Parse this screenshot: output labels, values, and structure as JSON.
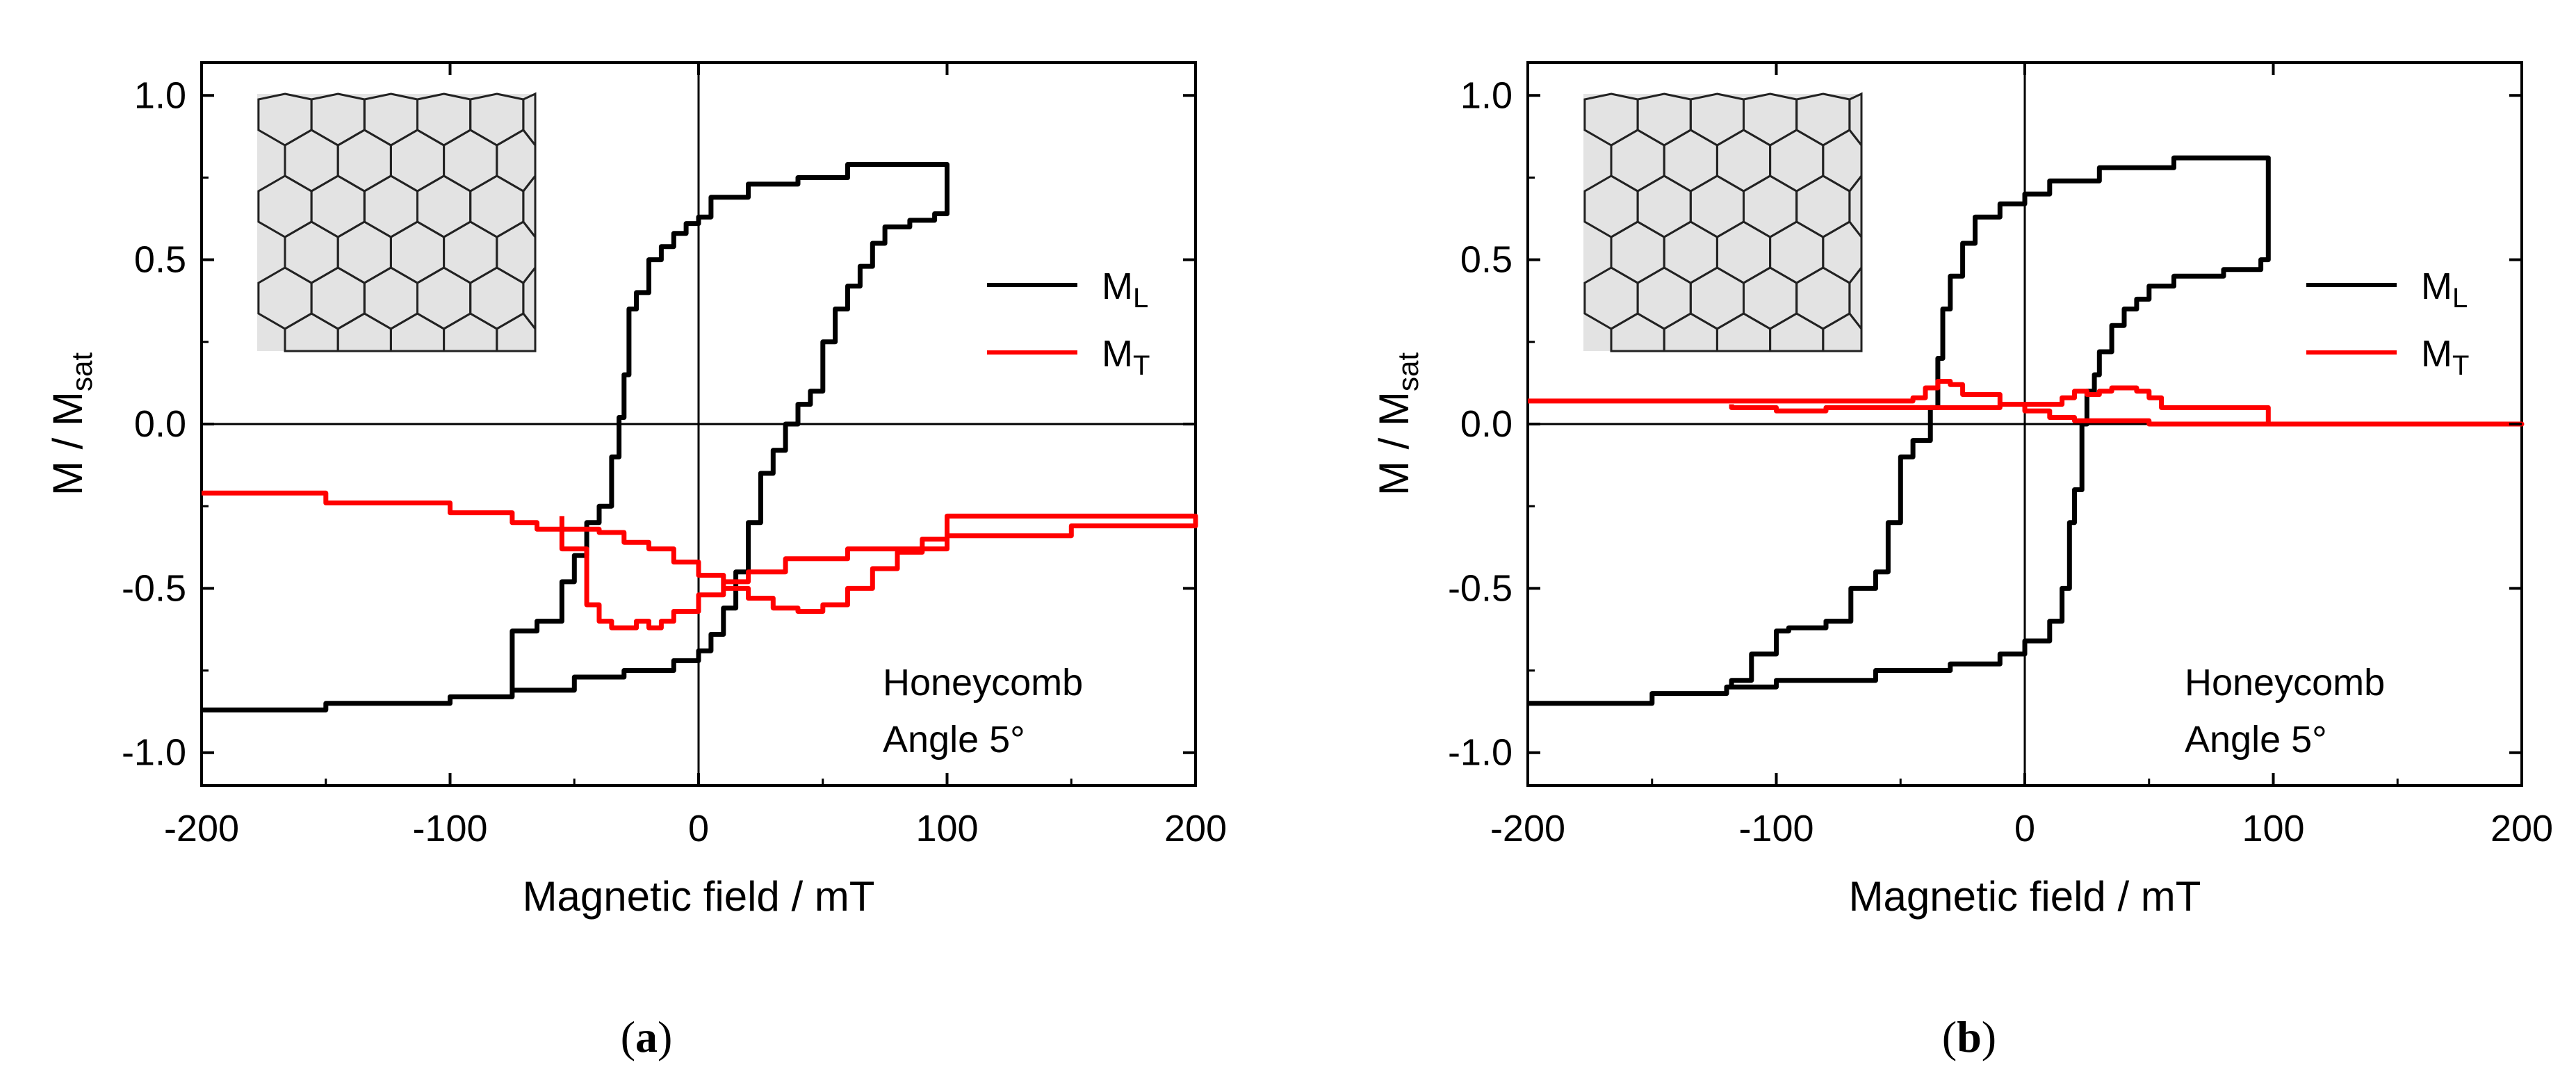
{
  "chart_data": [
    {
      "type": "line",
      "caption_letter": "a",
      "xlabel": "Magnetic field / mT",
      "ylabel_main": "M / M",
      "ylabel_sub": "sat",
      "xlim": [
        -200,
        200
      ],
      "ylim": [
        -1.1,
        1.1
      ],
      "xticks": [
        -200,
        -100,
        0,
        100,
        200
      ],
      "yticks": [
        -1.0,
        -0.5,
        0.0,
        0.5,
        1.0
      ],
      "xtick_labels": [
        "-200",
        "-100",
        "0",
        "100",
        "200"
      ],
      "ytick_labels": [
        "-1.0",
        "-0.5",
        "0.0",
        "0.5",
        "1.0"
      ],
      "annotation_line1": "Honeycomb",
      "annotation_line2": "Angle 5°",
      "legend": [
        {
          "main": "M",
          "sub": "L",
          "color": "#000000"
        },
        {
          "main": "M",
          "sub": "T",
          "color": "#ff0000"
        }
      ],
      "series": [
        {
          "name": "ML",
          "color": "#000000",
          "points": [
            [
              -200,
              -0.87
            ],
            [
              -150,
              -0.85
            ],
            [
              -100,
              -0.83
            ],
            [
              -75,
              -0.81
            ],
            [
              -50,
              -0.77
            ],
            [
              -30,
              -0.75
            ],
            [
              -10,
              -0.72
            ],
            [
              0,
              -0.69
            ],
            [
              5,
              -0.64
            ],
            [
              10,
              -0.56
            ],
            [
              15,
              -0.45
            ],
            [
              20,
              -0.3
            ],
            [
              25,
              -0.15
            ],
            [
              30,
              -0.08
            ],
            [
              35,
              0.0
            ],
            [
              40,
              0.06
            ],
            [
              45,
              0.1
            ],
            [
              50,
              0.25
            ],
            [
              55,
              0.35
            ],
            [
              60,
              0.42
            ],
            [
              65,
              0.48
            ],
            [
              70,
              0.55
            ],
            [
              75,
              0.6
            ],
            [
              85,
              0.62
            ],
            [
              95,
              0.64
            ],
            [
              100,
              0.79
            ],
            [
              100,
              0.79
            ],
            [
              60,
              0.75
            ],
            [
              40,
              0.73
            ],
            [
              20,
              0.69
            ],
            [
              5,
              0.63
            ],
            [
              0,
              0.61
            ],
            [
              -5,
              0.58
            ],
            [
              -10,
              0.54
            ],
            [
              -15,
              0.5
            ],
            [
              -20,
              0.4
            ],
            [
              -25,
              0.35
            ],
            [
              -28,
              0.15
            ],
            [
              -30,
              0.02
            ],
            [
              -32,
              -0.1
            ],
            [
              -35,
              -0.25
            ],
            [
              -40,
              -0.3
            ],
            [
              -45,
              -0.4
            ],
            [
              -50,
              -0.48
            ],
            [
              -55,
              -0.6
            ],
            [
              -65,
              -0.63
            ],
            [
              -75,
              -0.65
            ],
            [
              -75,
              -0.81
            ]
          ]
        },
        {
          "name": "MT",
          "color": "#ff0000",
          "points": [
            [
              -200,
              -0.21
            ],
            [
              -150,
              -0.24
            ],
            [
              -100,
              -0.27
            ],
            [
              -75,
              -0.3
            ],
            [
              -65,
              -0.32
            ],
            [
              -55,
              -0.38
            ],
            [
              -45,
              -0.55
            ],
            [
              -40,
              -0.6
            ],
            [
              -35,
              -0.62
            ],
            [
              -30,
              -0.62
            ],
            [
              -25,
              -0.6
            ],
            [
              -20,
              -0.62
            ],
            [
              -15,
              -0.6
            ],
            [
              -10,
              -0.57
            ],
            [
              0,
              -0.52
            ],
            [
              10,
              -0.48
            ],
            [
              20,
              -0.45
            ],
            [
              35,
              -0.41
            ],
            [
              60,
              -0.38
            ],
            [
              100,
              -0.34
            ],
            [
              150,
              -0.31
            ],
            [
              200,
              -0.28
            ],
            [
              200,
              -0.28
            ],
            [
              100,
              -0.35
            ],
            [
              90,
              -0.39
            ],
            [
              80,
              -0.44
            ],
            [
              70,
              -0.5
            ],
            [
              60,
              -0.55
            ],
            [
              50,
              -0.57
            ],
            [
              40,
              -0.56
            ],
            [
              30,
              -0.53
            ],
            [
              20,
              -0.5
            ],
            [
              10,
              -0.46
            ],
            [
              0,
              -0.42
            ],
            [
              -10,
              -0.38
            ],
            [
              -20,
              -0.36
            ],
            [
              -30,
              -0.33
            ],
            [
              -40,
              -0.32
            ],
            [
              -55,
              -0.28
            ]
          ]
        }
      ]
    },
    {
      "type": "line",
      "caption_letter": "b",
      "xlabel": "Magnetic field / mT",
      "ylabel_main": "M / M",
      "ylabel_sub": "sat",
      "xlim": [
        -200,
        200
      ],
      "ylim": [
        -1.1,
        1.1
      ],
      "xticks": [
        -200,
        -100,
        0,
        100,
        200
      ],
      "yticks": [
        -1.0,
        -0.5,
        0.0,
        0.5,
        1.0
      ],
      "xtick_labels": [
        "-200",
        "-100",
        "0",
        "100",
        "200"
      ],
      "ytick_labels": [
        "-1.0",
        "-0.5",
        "0.0",
        "0.5",
        "1.0"
      ],
      "annotation_line1": "Honeycomb",
      "annotation_line2": "Angle 5°",
      "legend": [
        {
          "main": "M",
          "sub": "L",
          "color": "#000000"
        },
        {
          "main": "M",
          "sub": "T",
          "color": "#ff0000"
        }
      ],
      "series": [
        {
          "name": "ML",
          "color": "#000000",
          "points": [
            [
              -200,
              -0.85
            ],
            [
              -150,
              -0.82
            ],
            [
              -120,
              -0.8
            ],
            [
              -100,
              -0.78
            ],
            [
              -60,
              -0.75
            ],
            [
              -30,
              -0.73
            ],
            [
              -10,
              -0.7
            ],
            [
              0,
              -0.66
            ],
            [
              10,
              -0.6
            ],
            [
              15,
              -0.5
            ],
            [
              18,
              -0.3
            ],
            [
              20,
              -0.2
            ],
            [
              23,
              0.0
            ],
            [
              25,
              0.1
            ],
            [
              28,
              0.15
            ],
            [
              30,
              0.22
            ],
            [
              35,
              0.3
            ],
            [
              40,
              0.35
            ],
            [
              45,
              0.38
            ],
            [
              50,
              0.42
            ],
            [
              60,
              0.45
            ],
            [
              80,
              0.47
            ],
            [
              95,
              0.5
            ],
            [
              98,
              0.81
            ],
            [
              98,
              0.81
            ],
            [
              60,
              0.78
            ],
            [
              30,
              0.74
            ],
            [
              10,
              0.7
            ],
            [
              0,
              0.67
            ],
            [
              -10,
              0.63
            ],
            [
              -20,
              0.55
            ],
            [
              -25,
              0.45
            ],
            [
              -30,
              0.35
            ],
            [
              -33,
              0.2
            ],
            [
              -35,
              0.05
            ],
            [
              -38,
              -0.05
            ],
            [
              -45,
              -0.1
            ],
            [
              -50,
              -0.3
            ],
            [
              -55,
              -0.45
            ],
            [
              -60,
              -0.5
            ],
            [
              -70,
              -0.6
            ],
            [
              -80,
              -0.62
            ],
            [
              -95,
              -0.63
            ],
            [
              -100,
              -0.7
            ],
            [
              -110,
              -0.78
            ],
            [
              -118,
              -0.8
            ]
          ]
        },
        {
          "name": "MT",
          "color": "#ff0000",
          "points": [
            [
              -200,
              0.07
            ],
            [
              -150,
              0.07
            ],
            [
              -100,
              0.07
            ],
            [
              -60,
              0.07
            ],
            [
              -50,
              0.07
            ],
            [
              -45,
              0.08
            ],
            [
              -40,
              0.11
            ],
            [
              -35,
              0.13
            ],
            [
              -30,
              0.12
            ],
            [
              -25,
              0.09
            ],
            [
              -10,
              0.06
            ],
            [
              0,
              0.04
            ],
            [
              10,
              0.02
            ],
            [
              20,
              0.01
            ],
            [
              50,
              0.0
            ],
            [
              100,
              0.0
            ],
            [
              150,
              0.0
            ],
            [
              200,
              0.0
            ],
            [
              200,
              0.0
            ],
            [
              100,
              0.0
            ],
            [
              98,
              0.05
            ],
            [
              60,
              0.05
            ],
            [
              55,
              0.08
            ],
            [
              50,
              0.1
            ],
            [
              45,
              0.11
            ],
            [
              35,
              0.1
            ],
            [
              30,
              0.09
            ],
            [
              25,
              0.1
            ],
            [
              20,
              0.08
            ],
            [
              15,
              0.06
            ],
            [
              0,
              0.06
            ],
            [
              -10,
              0.05
            ],
            [
              -30,
              0.05
            ],
            [
              -50,
              0.05
            ],
            [
              -80,
              0.04
            ],
            [
              -100,
              0.05
            ],
            [
              -118,
              0.06
            ]
          ]
        }
      ]
    }
  ]
}
